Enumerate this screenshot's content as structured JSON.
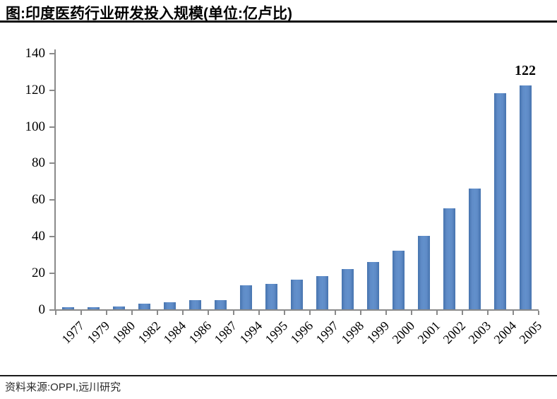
{
  "header": {
    "title": "图:印度医药行业研发投入规模(单位:亿卢比)"
  },
  "footer": {
    "source": "资料来源:OPPI,远川研究"
  },
  "chart_data": {
    "type": "bar",
    "title": "图:印度医药行业研发投入规模(单位:亿卢比)",
    "unit": "亿卢比",
    "categories": [
      "1977",
      "1979",
      "1980",
      "1982",
      "1984",
      "1986",
      "1987",
      "1994",
      "1995",
      "1996",
      "1997",
      "1998",
      "1999",
      "2000",
      "2001",
      "2002",
      "2003",
      "2004",
      "2005"
    ],
    "values": [
      1,
      1,
      1.5,
      3,
      4,
      5,
      5,
      13,
      14,
      16,
      18,
      22,
      26,
      32,
      40,
      55,
      66,
      118,
      122
    ],
    "xlabel": "",
    "ylabel": "",
    "ylim": [
      0,
      140
    ],
    "yticks": [
      0,
      20,
      40,
      60,
      80,
      100,
      120,
      140
    ],
    "grid": false,
    "legend": "none",
    "bar_color": "#4f81bd",
    "axis_color": "#8a8a8a",
    "annotations": [
      {
        "category": "2005",
        "value": 122,
        "label": "122"
      }
    ],
    "source": "资料来源:OPPI,远川研究"
  }
}
